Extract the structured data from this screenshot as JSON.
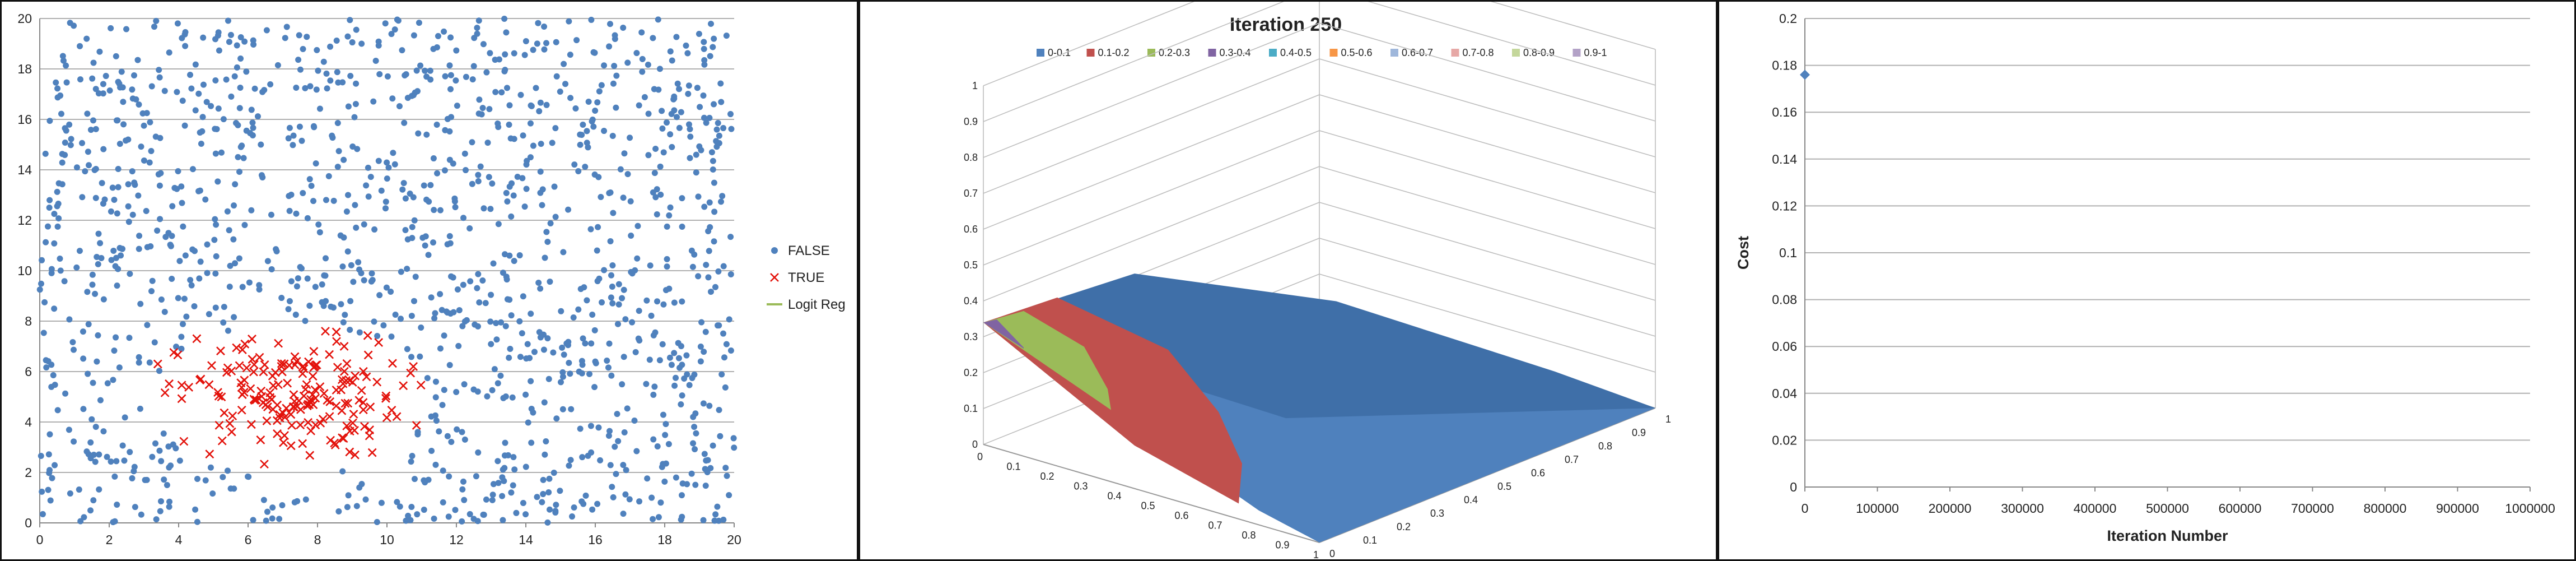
{
  "chart_data": [
    {
      "type": "scatter",
      "x_ticks": [
        "0",
        "2",
        "4",
        "6",
        "8",
        "10",
        "12",
        "14",
        "16",
        "18",
        "20"
      ],
      "y_ticks": [
        "0",
        "2",
        "4",
        "6",
        "8",
        "10",
        "12",
        "14",
        "16",
        "18",
        "20"
      ],
      "xlim": [
        0,
        20
      ],
      "ylim": [
        0,
        20
      ],
      "grid": "horizontal",
      "legend_position": "right",
      "series": [
        {
          "name": "FALSE",
          "marker": "dot",
          "color": "#4f81bd",
          "count": 1300,
          "distribution": "uniform over [0,20]x[0,20], excluding the TRUE cluster"
        },
        {
          "name": "TRUE",
          "marker": "x",
          "color": "#e3120b",
          "count": 190,
          "cluster_center": [
            7.2,
            5.0
          ],
          "cluster_extent_x": [
            3.4,
            11.0
          ],
          "cluster_extent_y": [
            1.8,
            7.6
          ]
        },
        {
          "name": "Logit Reg",
          "marker": "line",
          "color": "#9bbb59",
          "values": []
        }
      ]
    },
    {
      "type": "surface",
      "title": "Iteration 250",
      "legend_position": "top",
      "legend": [
        "0-0.1",
        "0.1-0.2",
        "0.2-0.3",
        "0.3-0.4",
        "0.4-0.5",
        "0.5-0.6",
        "0.6-0.7",
        "0.7-0.8",
        "0.8-0.9",
        "0.9-1"
      ],
      "legend_colors": [
        "#4f81bd",
        "#c0504d",
        "#9bbb59",
        "#8064a2",
        "#4bacc6",
        "#f79646",
        "#9fb7db",
        "#e6a8a6",
        "#c4d79b",
        "#b3a2c7"
      ],
      "z_ticks": [
        "0",
        "0.1",
        "0.2",
        "0.3",
        "0.4",
        "0.5",
        "0.6",
        "0.7",
        "0.8",
        "0.9",
        "1"
      ],
      "left_axis_ticks": [
        "0",
        "0.1",
        "0.2",
        "0.3",
        "0.4",
        "0.5",
        "0.6",
        "0.7",
        "0.8",
        "0.9",
        "1"
      ],
      "right_axis_ticks": [
        "0",
        "0.1",
        "0.2",
        "0.3",
        "0.4",
        "0.5",
        "0.6",
        "0.7",
        "0.8",
        "0.9",
        "1"
      ],
      "surface_bands": [
        {
          "range": "0.3-0.4",
          "color": "#8064a2"
        },
        {
          "range": "0.2-0.3",
          "color": "#9bbb59"
        },
        {
          "range": "0.1-0.2",
          "color": "#c0504d"
        },
        {
          "range": "0-0.1",
          "color": "#4f81bd"
        }
      ]
    },
    {
      "type": "scatter",
      "xlabel": "Iteration Number",
      "ylabel": "Cost",
      "x_ticks": [
        "0",
        "100000",
        "200000",
        "300000",
        "400000",
        "500000",
        "600000",
        "700000",
        "800000",
        "900000",
        "1000000"
      ],
      "y_ticks": [
        "0",
        "0.02",
        "0.04",
        "0.06",
        "0.08",
        "0.1",
        "0.12",
        "0.14",
        "0.16",
        "0.18",
        "0.2"
      ],
      "xlim": [
        0,
        1000000
      ],
      "ylim": [
        0,
        0.2
      ],
      "grid": "horizontal",
      "series": [
        {
          "marker": "diamond",
          "color": "#4f81bd",
          "points": [
            {
              "x": 0,
              "y": 0.176
            }
          ]
        }
      ]
    }
  ]
}
